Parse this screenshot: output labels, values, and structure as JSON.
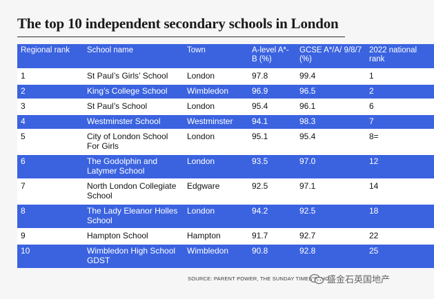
{
  "title": "The top 10 independent secondary schools in London",
  "headers": [
    "Regional rank",
    "School name",
    "Town",
    "A-level A*-B (%)",
    "GCSE A*/A/ 9/8/7 (%)",
    "2022 national rank"
  ],
  "rows": [
    {
      "rank": "1",
      "school": "St Paul’s Girls’ School",
      "town": "London",
      "alevel": "97.8",
      "gcse": "99.4",
      "national": "1"
    },
    {
      "rank": "2",
      "school": "King’s College School",
      "town": "Wimbledon",
      "alevel": "96.9",
      "gcse": "96.5",
      "national": "2"
    },
    {
      "rank": "3",
      "school": "St Paul’s School",
      "town": "London",
      "alevel": "95.4",
      "gcse": "96.1",
      "national": "6"
    },
    {
      "rank": "4",
      "school": "Westminster School",
      "town": "Westminster",
      "alevel": "94.1",
      "gcse": "98.3",
      "national": "7"
    },
    {
      "rank": "5",
      "school": "City of London School For Girls",
      "town": "London",
      "alevel": "95.1",
      "gcse": "95.4",
      "national": "8="
    },
    {
      "rank": "6",
      "school": "The Godolphin and Latymer School",
      "town": "London",
      "alevel": "93.5",
      "gcse": "97.0",
      "national": "12"
    },
    {
      "rank": "7",
      "school": "North London Collegiate School",
      "town": "Edgware",
      "alevel": "92.5",
      "gcse": "97.1",
      "national": "14"
    },
    {
      "rank": "8",
      "school": "The Lady Eleanor Holles School",
      "town": "London",
      "alevel": "94.2",
      "gcse": "92.5",
      "national": "18"
    },
    {
      "rank": "9",
      "school": "Hampton School",
      "town": "Hampton",
      "alevel": "91.7",
      "gcse": "92.7",
      "national": "22"
    },
    {
      "rank": "10",
      "school": "Wimbledon High School GDST",
      "town": "Wimbledon",
      "alevel": "90.8",
      "gcse": "92.8",
      "national": "25"
    }
  ],
  "source": "SOURCE: PARENT POWER, THE SUNDAY TIMES SCHO",
  "watermark_text": "盛金石英国地产",
  "colors": {
    "accent": "#3b63e0",
    "row_white": "#ffffff",
    "background": "#f6f6f6"
  }
}
